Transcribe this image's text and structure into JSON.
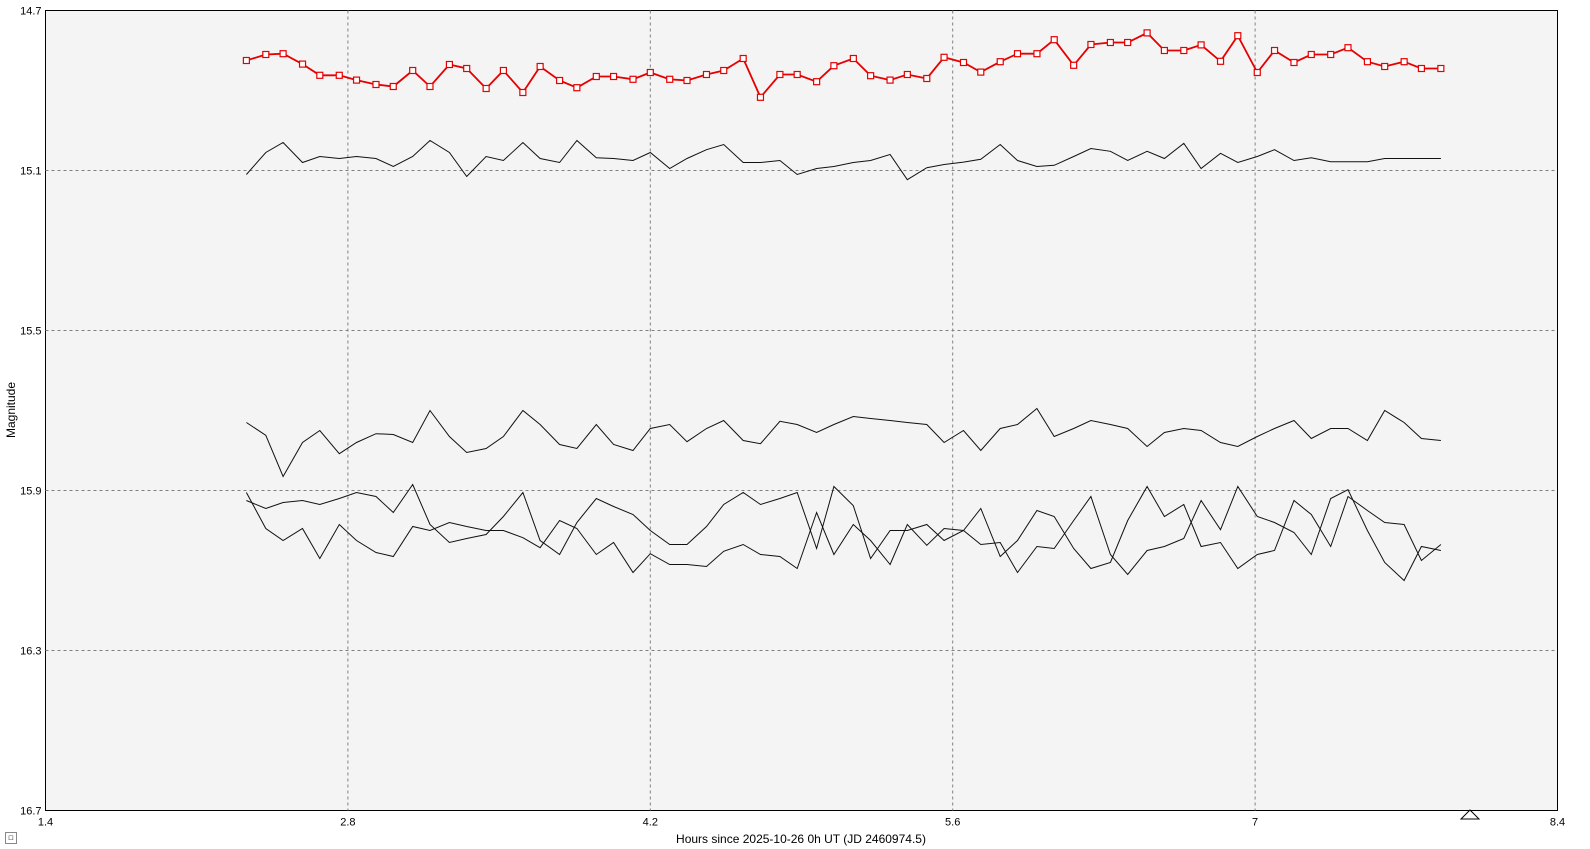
{
  "chart_data": {
    "type": "line",
    "xlabel": "Hours since 2025-10-26 0h UT (JD 2460974.5)",
    "ylabel": "Magnitude",
    "xlim": [
      1.4,
      8.4
    ],
    "ylim": [
      14.7,
      16.7
    ],
    "y_inverted": true,
    "grid": true,
    "x_ticks": [
      "1.4",
      "2.8",
      "4.2",
      "5.6",
      "7",
      "8.4"
    ],
    "y_ticks": [
      "14.7",
      "15.1",
      "15.5",
      "15.9",
      "16.3",
      "16.7"
    ],
    "x_tick_values": [
      1.4,
      2.8,
      4.2,
      5.6,
      7.0,
      8.4
    ],
    "y_tick_values": [
      14.7,
      15.1,
      15.5,
      15.9,
      16.3,
      16.7
    ],
    "x": [
      2.33,
      2.42,
      2.5,
      2.59,
      2.67,
      2.76,
      2.84,
      2.93,
      3.01,
      3.1,
      3.18,
      3.27,
      3.35,
      3.44,
      3.52,
      3.61,
      3.69,
      3.78,
      3.86,
      3.95,
      4.03,
      4.12,
      4.2,
      4.29,
      4.37,
      4.46,
      4.54,
      4.63,
      4.71,
      4.8,
      4.88,
      4.97,
      5.05,
      5.14,
      5.22,
      5.31,
      5.39,
      5.48,
      5.56,
      5.65,
      5.73,
      5.82,
      5.9,
      5.99,
      6.07,
      6.16,
      6.24,
      6.33,
      6.41,
      6.5,
      6.58,
      6.67,
      6.75,
      6.84,
      6.92,
      7.01,
      7.09,
      7.18,
      7.26,
      7.35,
      7.43,
      7.52,
      7.6,
      7.69,
      7.77,
      7.86
    ],
    "series": [
      {
        "color": "#e60000",
        "markers": "square",
        "values": [
          14.825,
          14.81,
          14.808,
          14.834,
          14.862,
          14.862,
          14.874,
          14.885,
          14.89,
          14.85,
          14.89,
          14.835,
          14.845,
          14.895,
          14.85,
          14.905,
          14.84,
          14.875,
          14.893,
          14.865,
          14.865,
          14.872,
          14.855,
          14.872,
          14.875,
          14.86,
          14.85,
          14.82,
          14.917,
          14.86,
          14.86,
          14.878,
          14.838,
          14.82,
          14.863,
          14.874,
          14.86,
          14.87,
          14.817,
          14.83,
          14.854,
          14.828,
          14.808,
          14.808,
          14.773,
          14.837,
          14.785,
          14.78,
          14.78,
          14.756,
          14.8,
          14.8,
          14.786,
          14.827,
          14.763,
          14.855,
          14.8,
          14.83,
          14.81,
          14.81,
          14.793,
          14.828,
          14.84,
          14.828,
          14.845,
          14.845
        ]
      },
      {
        "color": "#111111",
        "markers": "none",
        "values": [
          15.11,
          15.055,
          15.03,
          15.08,
          15.065,
          15.07,
          15.065,
          15.07,
          15.09,
          15.065,
          15.025,
          15.055,
          15.115,
          15.065,
          15.075,
          15.03,
          15.07,
          15.08,
          15.025,
          15.068,
          15.07,
          15.075,
          15.055,
          15.095,
          15.07,
          15.048,
          15.035,
          15.08,
          15.08,
          15.075,
          15.11,
          15.095,
          15.09,
          15.08,
          15.075,
          15.06,
          15.123,
          15.093,
          15.085,
          15.079,
          15.072,
          15.035,
          15.075,
          15.09,
          15.087,
          15.065,
          15.045,
          15.052,
          15.075,
          15.052,
          15.07,
          15.032,
          15.095,
          15.057,
          15.08,
          15.065,
          15.048,
          15.075,
          15.068,
          15.078,
          15.078,
          15.078,
          15.07,
          15.07,
          15.07,
          15.07
        ]
      },
      {
        "color": "#111111",
        "markers": "none",
        "values": [
          15.73,
          15.762,
          15.865,
          15.78,
          15.75,
          15.808,
          15.78,
          15.758,
          15.76,
          15.78,
          15.7,
          15.765,
          15.805,
          15.795,
          15.765,
          15.7,
          15.735,
          15.785,
          15.795,
          15.735,
          15.785,
          15.8,
          15.745,
          15.735,
          15.778,
          15.745,
          15.725,
          15.775,
          15.783,
          15.727,
          15.735,
          15.755,
          15.735,
          15.715,
          15.72,
          15.725,
          15.73,
          15.735,
          15.78,
          15.75,
          15.8,
          15.745,
          15.735,
          15.695,
          15.765,
          15.745,
          15.725,
          15.735,
          15.745,
          15.79,
          15.755,
          15.745,
          15.75,
          15.78,
          15.79,
          15.765,
          15.745,
          15.725,
          15.77,
          15.745,
          15.745,
          15.775,
          15.7,
          15.73,
          15.77,
          15.775
        ]
      },
      {
        "color": "#111111",
        "markers": "none",
        "values": [
          15.925,
          15.945,
          15.93,
          15.925,
          15.935,
          15.92,
          15.905,
          15.915,
          15.955,
          15.885,
          15.985,
          16.03,
          16.02,
          16.01,
          15.965,
          15.905,
          16.025,
          16.06,
          15.98,
          15.92,
          15.94,
          15.96,
          16.0,
          16.035,
          16.035,
          15.99,
          15.935,
          15.905,
          15.935,
          15.92,
          15.905,
          16.045,
          15.89,
          15.938,
          16.07,
          16.0,
          16.0,
          15.985,
          16.025,
          16.0,
          15.945,
          16.065,
          16.025,
          15.95,
          15.965,
          16.045,
          16.095,
          16.08,
          15.975,
          15.89,
          15.965,
          15.935,
          16.04,
          16.03,
          16.095,
          16.06,
          16.05,
          15.925,
          15.96,
          16.04,
          15.915,
          15.95,
          15.98,
          15.985,
          16.075,
          16.035
        ]
      },
      {
        "color": "#111111",
        "markers": "none",
        "values": [
          15.905,
          15.995,
          16.025,
          15.995,
          16.07,
          15.985,
          16.025,
          16.055,
          16.065,
          15.99,
          16.0,
          15.98,
          15.99,
          16.0,
          16.0,
          16.018,
          16.043,
          15.975,
          15.995,
          16.06,
          16.03,
          16.105,
          16.058,
          16.085,
          16.085,
          16.09,
          16.052,
          16.035,
          16.06,
          16.065,
          16.095,
          15.955,
          16.06,
          15.985,
          16.025,
          16.085,
          15.985,
          16.037,
          15.995,
          16.0,
          16.035,
          16.03,
          16.105,
          16.04,
          16.045,
          15.975,
          15.915,
          16.06,
          16.11,
          16.05,
          16.04,
          16.02,
          15.925,
          15.998,
          15.89,
          15.965,
          15.98,
          16.005,
          16.06,
          15.92,
          15.898,
          16.0,
          16.08,
          16.125,
          16.04,
          16.05
        ]
      }
    ]
  },
  "ui": {
    "corner_button_glyph": "◽",
    "end_marker_icon": "triangle-icon"
  }
}
